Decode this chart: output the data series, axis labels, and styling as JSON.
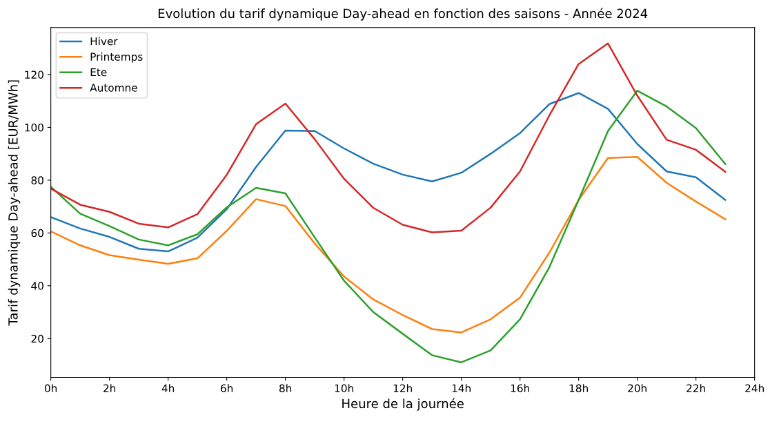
{
  "chart_data": {
    "type": "line",
    "title": "Evolution du tarif dynamique Day-ahead en fonction des saisons - Année 2024",
    "xlabel": "Heure de la journée",
    "ylabel": "Tarif dynamique Day-ahead [EUR/MWh]",
    "x": [
      0,
      1,
      2,
      3,
      4,
      5,
      6,
      7,
      8,
      9,
      10,
      11,
      12,
      13,
      14,
      15,
      16,
      17,
      18,
      19,
      20,
      21,
      22,
      23
    ],
    "series": [
      {
        "name": "Hiver",
        "color": "#1f77b4",
        "values": [
          66,
          61.7,
          58.5,
          54,
          53,
          58.2,
          69,
          85,
          98.8,
          98.6,
          92,
          86.2,
          82.1,
          79.5,
          82.8,
          90,
          97.8,
          108.8,
          113,
          107,
          93.7,
          83.3,
          81.1,
          72.5
        ]
      },
      {
        "name": "Printemps",
        "color": "#ff7f0e",
        "values": [
          60.6,
          55.3,
          51.6,
          49.9,
          48.3,
          50.4,
          60.8,
          72.8,
          70.2,
          56,
          43.5,
          34.8,
          28.9,
          23.6,
          22.3,
          27.3,
          35.5,
          52.5,
          72.5,
          88.4,
          88.8,
          79,
          71.9,
          65.2
        ]
      },
      {
        "name": "Ete",
        "color": "#2ca02c",
        "values": [
          77.5,
          67.3,
          62.6,
          57.5,
          55.3,
          59.5,
          69.7,
          77.1,
          75,
          58.3,
          41.9,
          30,
          21.8,
          13.7,
          11,
          15.5,
          27.3,
          47,
          72.5,
          98.6,
          113.9,
          107.9,
          99.7,
          86.1
        ]
      },
      {
        "name": "Automne",
        "color": "#d62728",
        "values": [
          76.8,
          70.7,
          68,
          63.5,
          62.1,
          67.1,
          82,
          101.2,
          109,
          95.5,
          80.5,
          69.5,
          63.1,
          60.2,
          60.9,
          69.6,
          83.3,
          104.5,
          124,
          131.8,
          112,
          95.3,
          91.5,
          83.2
        ]
      }
    ],
    "xlim": [
      0,
      24
    ],
    "xticks": [
      {
        "value": 0,
        "label": "0h"
      },
      {
        "value": 2,
        "label": "2h"
      },
      {
        "value": 4,
        "label": "4h"
      },
      {
        "value": 6,
        "label": "6h"
      },
      {
        "value": 8,
        "label": "8h"
      },
      {
        "value": 10,
        "label": "10h"
      },
      {
        "value": 12,
        "label": "12h"
      },
      {
        "value": 14,
        "label": "14h"
      },
      {
        "value": 16,
        "label": "16h"
      },
      {
        "value": 18,
        "label": "18h"
      },
      {
        "value": 20,
        "label": "20h"
      },
      {
        "value": 22,
        "label": "22h"
      },
      {
        "value": 24,
        "label": "24h"
      }
    ],
    "ylim": [
      5.3,
      137.8
    ],
    "yticks": [
      20,
      40,
      60,
      80,
      100,
      120
    ],
    "grid": false,
    "legend": "top left",
    "marker": "none",
    "line_style": "solid"
  }
}
